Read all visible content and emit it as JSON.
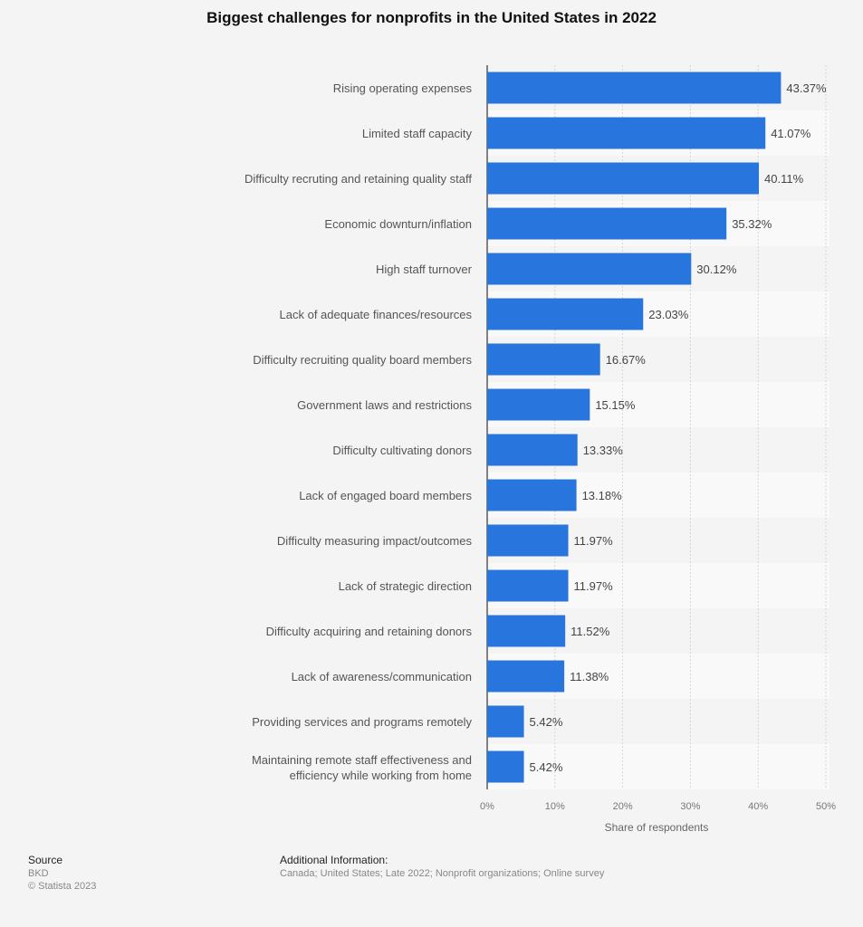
{
  "chart_data": {
    "type": "bar",
    "orientation": "horizontal",
    "title": "Biggest challenges for nonprofits in the United States in 2022",
    "xlabel": "Share of respondents",
    "ylabel": "",
    "xlim": [
      0,
      50
    ],
    "ticks": [
      "0%",
      "10%",
      "20%",
      "30%",
      "40%",
      "50%"
    ],
    "grid": true,
    "bar_color": "#2876dd",
    "categories": [
      "Rising operating expenses",
      "Limited staff capacity",
      "Difficulty recruting and retaining quality staff",
      "Economic downturn/inflation",
      "High staff turnover",
      "Lack of adequate finances/resources",
      "Difficulty recruiting quality board members",
      "Government laws and restrictions",
      "Difficulty cultivating donors",
      "Lack of engaged board members",
      "Difficulty measuring impact/outcomes",
      "Lack of strategic direction",
      "Difficulty acquiring and retaining donors",
      "Lack of awareness/communication",
      "Providing services and programs remotely",
      "Maintaining remote staff effectiveness and efficiency while working from home"
    ],
    "values": [
      43.37,
      41.07,
      40.11,
      35.32,
      30.12,
      23.03,
      16.67,
      15.15,
      13.33,
      13.18,
      11.97,
      11.97,
      11.52,
      11.38,
      5.42,
      5.42
    ],
    "data_labels": [
      "43.37%",
      "41.07%",
      "40.11%",
      "35.32%",
      "30.12%",
      "23.03%",
      "16.67%",
      "15.15%",
      "13.33%",
      "13.18%",
      "11.97%",
      "11.97%",
      "11.52%",
      "11.38%",
      "5.42%",
      "5.42%"
    ]
  },
  "footer": {
    "source_label": "Source",
    "source": "BKD",
    "copyright": "© Statista 2023",
    "info_label": "Additional Information:",
    "info": "Canada; United States; Late 2022; Nonprofit organizations; Online survey"
  }
}
